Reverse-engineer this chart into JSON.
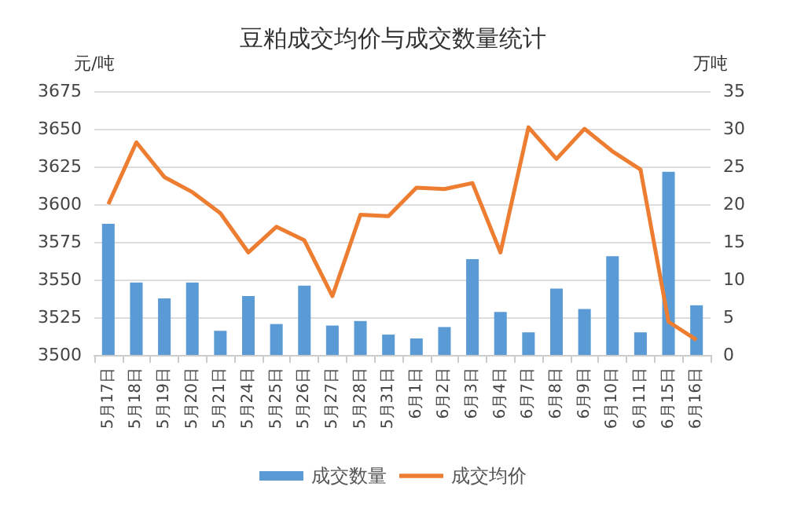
{
  "chart_data": {
    "type": "bar",
    "title": "豆粕成交均价与成交数量统计",
    "ylabel": "元/吨",
    "y2label": "万吨",
    "categories": [
      "5月17日",
      "5月18日",
      "5月19日",
      "5月20日",
      "5月21日",
      "5月24日",
      "5月25日",
      "5月26日",
      "5月27日",
      "5月28日",
      "5月31日",
      "6月1日",
      "6月2日",
      "6月3日",
      "6月4日",
      "6月7日",
      "6月8日",
      "6月9日",
      "6月10日",
      "6月11日",
      "6月15日",
      "6月16日"
    ],
    "series": [
      {
        "name": "成交数量",
        "axis": "y2",
        "color": "#5b9bd5",
        "values": [
          17.4,
          9.6,
          7.5,
          9.6,
          3.2,
          7.8,
          4.1,
          9.2,
          3.9,
          4.5,
          2.7,
          2.2,
          3.7,
          12.7,
          5.7,
          3.0,
          8.8,
          6.1,
          13.1,
          3.0,
          24.3,
          6.6
        ]
      },
      {
        "name": "成交均价",
        "type": "line",
        "color": "#ed7d31",
        "values": [
          3600,
          3641,
          3618,
          3608,
          3594,
          3568,
          3585,
          3576,
          3539,
          3593,
          3592,
          3611,
          3610,
          3614,
          3568,
          3651,
          3630,
          3650,
          3635,
          3623,
          3522,
          3510
        ]
      }
    ],
    "ylim": [
      3500,
      3675
    ],
    "yticks": [
      3500,
      3525,
      3550,
      3575,
      3600,
      3625,
      3650,
      3675
    ],
    "y2lim": [
      0,
      35
    ],
    "y2ticks": [
      0,
      5,
      10,
      15,
      20,
      25,
      30,
      35
    ],
    "grid": "y",
    "legend": "bottom",
    "marker": "none"
  }
}
